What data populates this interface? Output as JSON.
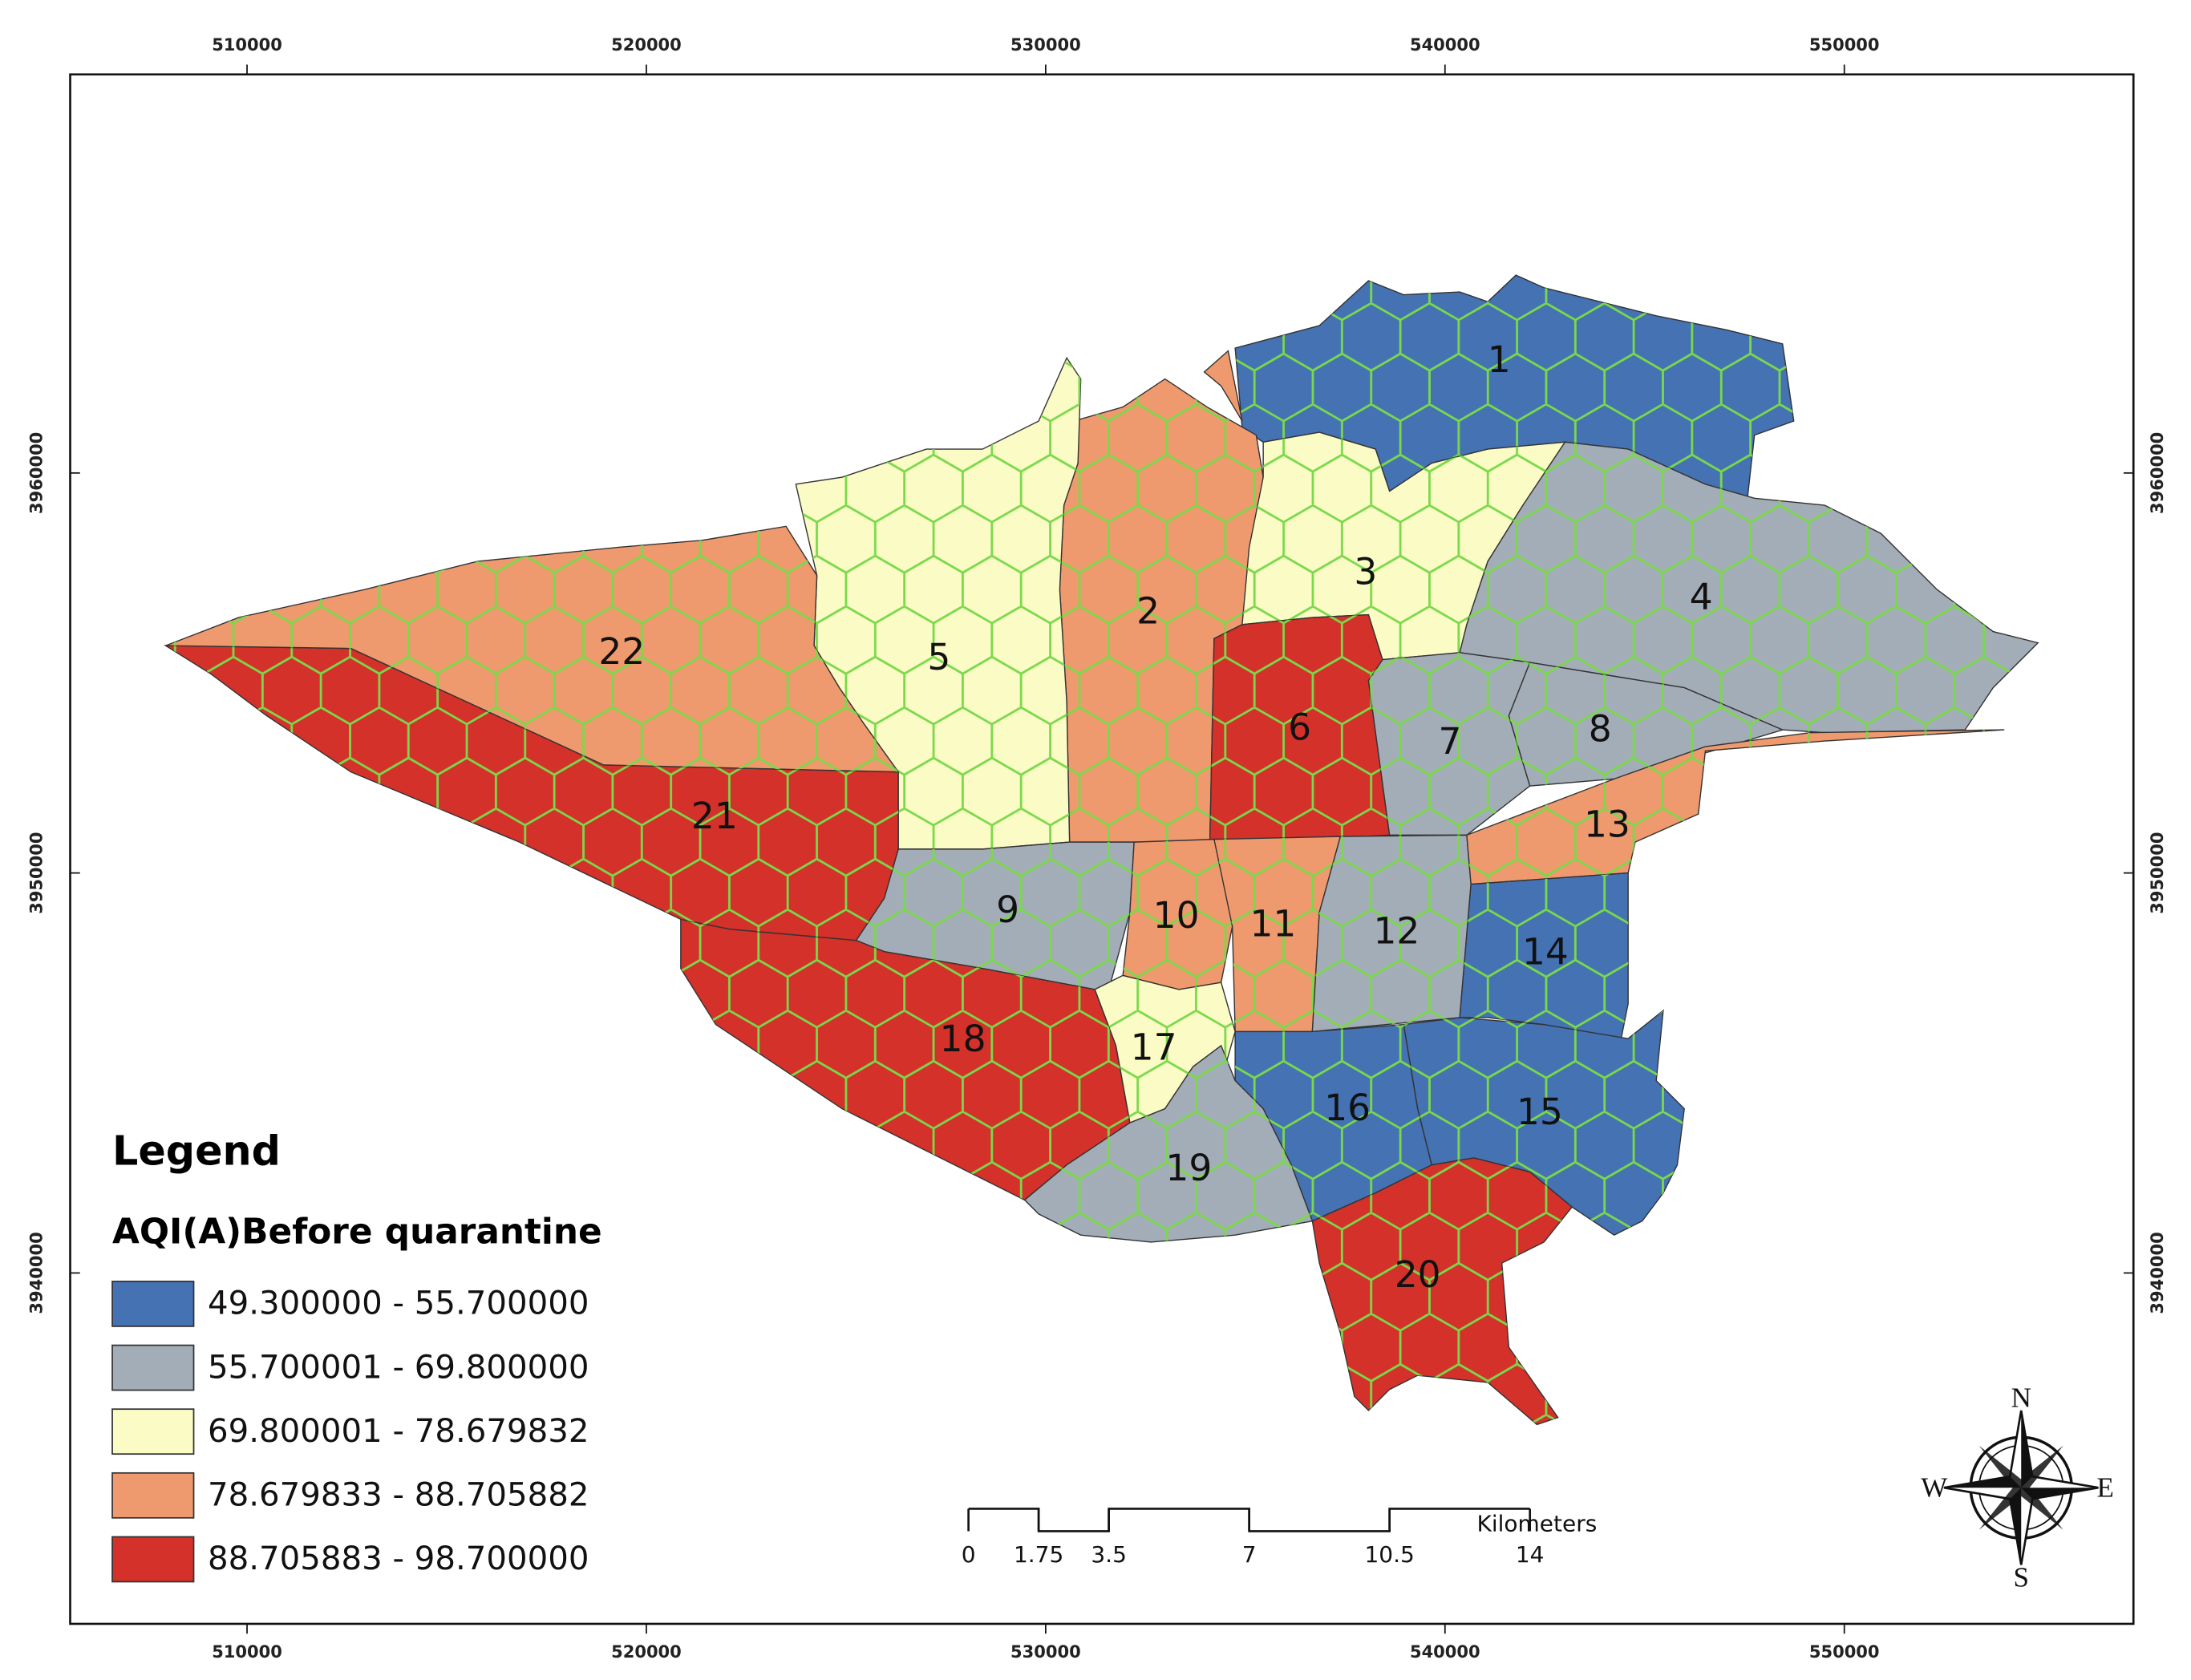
{
  "legend": {
    "title": "Legend",
    "subtitle": "AQI(A)Before quarantine",
    "items": [
      {
        "label": "49.300000 - 55.700000",
        "color": "#4472b3"
      },
      {
        "label": "55.700001 - 69.800000",
        "color": "#a3adb8"
      },
      {
        "label": "69.800001 - 78.679832",
        "color": "#fbfbc6"
      },
      {
        "label": "78.679833 - 88.705882",
        "color": "#ef9a6e"
      },
      {
        "label": "88.705883 - 98.700000",
        "color": "#d3312a"
      }
    ]
  },
  "districts": [
    {
      "label": "1",
      "class": 0
    },
    {
      "label": "2",
      "class": 3
    },
    {
      "label": "3",
      "class": 2
    },
    {
      "label": "4",
      "class": 1
    },
    {
      "label": "5",
      "class": 2
    },
    {
      "label": "6",
      "class": 4
    },
    {
      "label": "7",
      "class": 1
    },
    {
      "label": "8",
      "class": 1
    },
    {
      "label": "9",
      "class": 1
    },
    {
      "label": "10",
      "class": 3
    },
    {
      "label": "11",
      "class": 3
    },
    {
      "label": "12",
      "class": 1
    },
    {
      "label": "13",
      "class": 3
    },
    {
      "label": "14",
      "class": 0
    },
    {
      "label": "15",
      "class": 0
    },
    {
      "label": "16",
      "class": 0
    },
    {
      "label": "17",
      "class": 2
    },
    {
      "label": "18",
      "class": 4
    },
    {
      "label": "19",
      "class": 1
    },
    {
      "label": "20",
      "class": 4
    },
    {
      "label": "21",
      "class": 4
    },
    {
      "label": "22",
      "class": 3
    }
  ],
  "map_frame": {
    "xticks": [
      510000,
      520000,
      530000,
      540000,
      550000
    ],
    "yticks": [
      3960000,
      3950000,
      3940000
    ]
  },
  "scale_bar": {
    "ticks": [
      0,
      1.75,
      3.5,
      7,
      10.5,
      14
    ],
    "unit": "Kilometers"
  },
  "compass": {
    "north": "N",
    "south": "S",
    "east": "E",
    "west": "W"
  }
}
